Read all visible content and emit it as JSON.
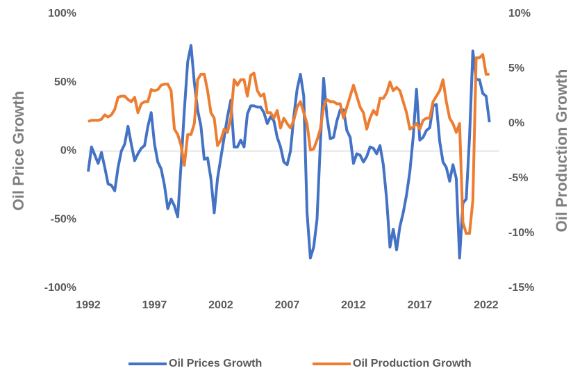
{
  "chart_data": {
    "type": "line",
    "y_label": "Oil Price Growth",
    "y2_label": "Oil Production Growth",
    "x": [
      1992,
      1992.25,
      1992.5,
      1992.75,
      1993,
      1993.25,
      1993.5,
      1993.75,
      1994,
      1994.25,
      1994.5,
      1994.75,
      1995,
      1995.25,
      1995.5,
      1995.75,
      1996,
      1996.25,
      1996.5,
      1996.75,
      1997,
      1997.25,
      1997.5,
      1997.75,
      1998,
      1998.25,
      1998.5,
      1998.75,
      1999,
      1999.25,
      1999.5,
      1999.75,
      2000,
      2000.25,
      2000.5,
      2000.75,
      2001,
      2001.25,
      2001.5,
      2001.75,
      2002,
      2002.25,
      2002.5,
      2002.75,
      2003,
      2003.25,
      2003.5,
      2003.75,
      2004,
      2004.25,
      2004.5,
      2004.75,
      2005,
      2005.25,
      2005.5,
      2005.75,
      2006,
      2006.25,
      2006.5,
      2006.75,
      2007,
      2007.25,
      2007.5,
      2007.75,
      2008,
      2008.25,
      2008.5,
      2008.75,
      2009,
      2009.25,
      2009.5,
      2009.75,
      2010,
      2010.25,
      2010.5,
      2010.75,
      2011,
      2011.25,
      2011.5,
      2011.75,
      2012,
      2012.25,
      2012.5,
      2012.75,
      2013,
      2013.25,
      2013.5,
      2013.75,
      2014,
      2014.25,
      2014.5,
      2014.75,
      2015,
      2015.25,
      2015.5,
      2015.75,
      2016,
      2016.25,
      2016.5,
      2016.75,
      2017,
      2017.25,
      2017.5,
      2017.75,
      2018,
      2018.25,
      2018.5,
      2018.75,
      2019,
      2019.25,
      2019.5,
      2019.75,
      2020,
      2020.25,
      2020.5,
      2020.75,
      2021,
      2021.25,
      2021.5,
      2021.75,
      2022,
      2022.25
    ],
    "series": [
      {
        "name": "Oil Prices Growth",
        "color": "#4472c4",
        "axis": "y",
        "values": [
          -15,
          3,
          -3,
          -9,
          -1,
          -12,
          -24,
          -25,
          -29,
          -12,
          0,
          5,
          18,
          5,
          -7,
          -2,
          2,
          4,
          18,
          28,
          5,
          -8,
          -13,
          -25,
          -42,
          -35,
          -40,
          -48,
          -10,
          30,
          65,
          77,
          50,
          30,
          18,
          -6,
          -5,
          -20,
          -45,
          -20,
          -5,
          10,
          25,
          37,
          3,
          3,
          8,
          3,
          27,
          33,
          33,
          32,
          32,
          28,
          20,
          25,
          22,
          10,
          3,
          -8,
          -10,
          0,
          25,
          45,
          56,
          40,
          -45,
          -78,
          -70,
          -50,
          5,
          53,
          25,
          9,
          10,
          22,
          30,
          30,
          15,
          10,
          -9,
          -2,
          -3,
          -8,
          -4,
          3,
          2,
          -2,
          4,
          -10,
          -35,
          -70,
          -57,
          -72,
          -55,
          -45,
          -32,
          -15,
          10,
          45,
          8,
          10,
          15,
          17,
          33,
          34,
          7,
          -8,
          -12,
          -22,
          -10,
          -20,
          -78,
          -38,
          -35,
          10,
          73,
          52,
          52,
          42,
          40,
          21
        ]
      },
      {
        "name": "Oil Production Growth",
        "color": "#ed7d31",
        "axis": "y2",
        "values": [
          0.2,
          0.3,
          0.3,
          0.3,
          0.4,
          0.8,
          0.6,
          0.8,
          1.3,
          2.4,
          2.5,
          2.5,
          2.2,
          2.0,
          2.4,
          1.0,
          1.8,
          2.0,
          2.0,
          3.1,
          3.0,
          3.1,
          3.5,
          3.6,
          3.6,
          3.0,
          -0.5,
          -1.0,
          -2.0,
          -3.8,
          -1.0,
          -1.0,
          0.0,
          4.0,
          4.5,
          4.5,
          3.0,
          1.0,
          0.5,
          -2.0,
          -1.5,
          -0.5,
          -0.8,
          0.5,
          4.0,
          3.5,
          4.0,
          4.0,
          2.5,
          4.4,
          4.6,
          3.0,
          2.5,
          2.7,
          1.0,
          1.0,
          0.5,
          1.2,
          -0.4,
          0.5,
          0.0,
          -0.4,
          0.3,
          1.5,
          2.0,
          1.0,
          0.0,
          -2.4,
          -2.3,
          -1.5,
          -0.5,
          1.5,
          2.2,
          2.0,
          2.0,
          1.8,
          1.8,
          0.5,
          1.5,
          2.5,
          3.5,
          2.5,
          1.5,
          1.0,
          -0.5,
          0.5,
          1.2,
          0.8,
          2.3,
          2.3,
          2.8,
          3.8,
          3.0,
          3.3,
          3.0,
          2.0,
          1.0,
          -0.5,
          -0.3,
          0.0,
          -0.5,
          0.3,
          0.5,
          0.5,
          2.0,
          2.5,
          3.0,
          4.0,
          2.0,
          0.5,
          0.0,
          -0.8,
          0.0,
          -9.0,
          -10.0,
          -10.0,
          -7.0,
          6.0,
          6.0,
          6.3,
          4.5,
          4.5
        ]
      }
    ],
    "xlim": [
      1992,
      2023
    ],
    "xticks": [
      1992,
      1997,
      2002,
      2007,
      2012,
      2017,
      2022
    ],
    "ylim": [
      -100,
      100
    ],
    "yticks": [
      {
        "value": -100,
        "label": "-100%"
      },
      {
        "value": -50,
        "label": "-50%"
      },
      {
        "value": 0,
        "label": "0%"
      },
      {
        "value": 50,
        "label": "50%"
      },
      {
        "value": 100,
        "label": "100%"
      }
    ],
    "y2lim": [
      -15,
      10
    ],
    "y2ticks": [
      {
        "value": -15,
        "label": "-15%"
      },
      {
        "value": -10,
        "label": "-10%"
      },
      {
        "value": -5,
        "label": "-5%"
      },
      {
        "value": 0,
        "label": "0%"
      },
      {
        "value": 5,
        "label": "5%"
      },
      {
        "value": 10,
        "label": "10%"
      }
    ],
    "legend": "bottom",
    "grid": false
  }
}
